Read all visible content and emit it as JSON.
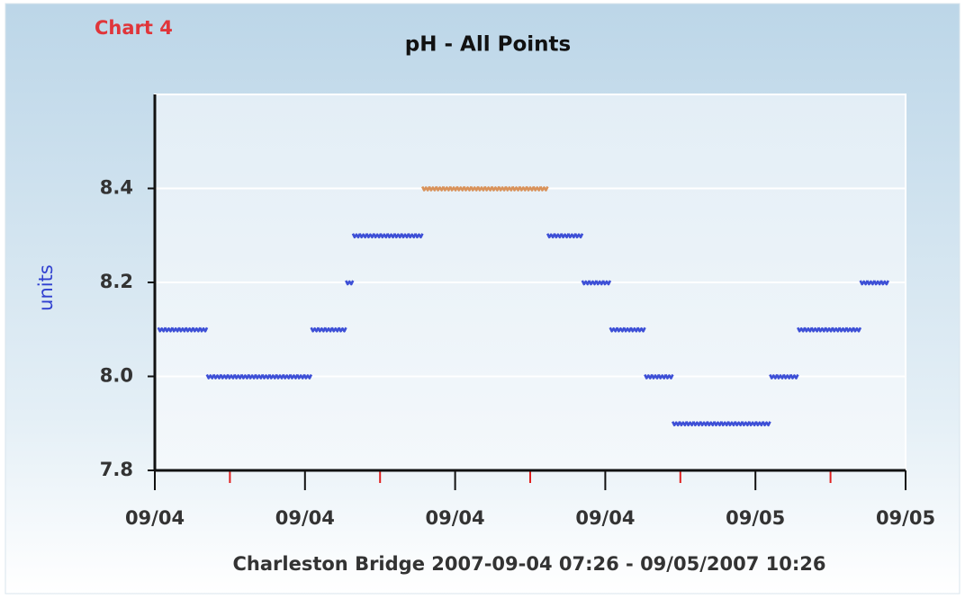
{
  "chart_data": {
    "type": "scatter",
    "label": "Chart 4",
    "title": "pH - All Points",
    "ylabel": "units",
    "footer": "Charleston Bridge 2007-09-04 07:26 - 09/05/2007 10:26",
    "xlim": [
      0,
      27
    ],
    "xticks": [
      {
        "value": 0,
        "label": "09/04"
      },
      {
        "value": 5.4,
        "label": "09/04"
      },
      {
        "value": 10.8,
        "label": "09/04"
      },
      {
        "value": 16.2,
        "label": "09/04"
      },
      {
        "value": 21.6,
        "label": "09/05"
      },
      {
        "value": 27,
        "label": "09/05"
      }
    ],
    "xminor": [
      2.7,
      8.1,
      13.5,
      18.9,
      24.3
    ],
    "ylim": [
      7.8,
      8.6
    ],
    "yticks": [
      7.8,
      {
        "value": 8.0,
        "label": "8.0"
      },
      8.2,
      8.4
    ],
    "grid": true,
    "series": [
      {
        "color": "#3d4fd6",
        "x": [
          0.25,
          0.5,
          0.75,
          1,
          1.25,
          1.5,
          1.75,
          2,
          2.25,
          2.5,
          2.75,
          3,
          3.25,
          3.5,
          3.75,
          4,
          4.25,
          4.5,
          4.75,
          5,
          5.25,
          5.5,
          5.75,
          6,
          6.25,
          6.5,
          6.75,
          7,
          7.25,
          7.5,
          7.75,
          8,
          8.25,
          8.5,
          8.75,
          9,
          9.25,
          9.5,
          14.25,
          14.5,
          14.75,
          15,
          15.25,
          15.5,
          15.75,
          16,
          16.25,
          16.5,
          16.75,
          17,
          17.25,
          17.5,
          17.75,
          18,
          18.25,
          18.5,
          18.75,
          19,
          19.25,
          19.5,
          19.75,
          20,
          20.25,
          20.5,
          20.75,
          21,
          21.25,
          21.5,
          21.75,
          22,
          22.25,
          22.5,
          22.75,
          23,
          23.25,
          23.5,
          23.75,
          24,
          24.25,
          24.5,
          24.75,
          25,
          25.25,
          25.5,
          25.75,
          26,
          26.25
        ],
        "values": [
          8.1,
          8.1,
          8.1,
          8.1,
          8.1,
          8.1,
          8.1,
          8.0,
          8.0,
          8.0,
          8.0,
          8.0,
          8.0,
          8.0,
          8.0,
          8.0,
          8.0,
          8.0,
          8.0,
          8.0,
          8.0,
          8.0,
          8.1,
          8.1,
          8.1,
          8.1,
          8.1,
          8.2,
          8.3,
          8.3,
          8.3,
          8.3,
          8.3,
          8.3,
          8.3,
          8.3,
          8.3,
          8.3,
          8.3,
          8.3,
          8.3,
          8.3,
          8.3,
          8.2,
          8.2,
          8.2,
          8.2,
          8.1,
          8.1,
          8.1,
          8.1,
          8.1,
          8.0,
          8.0,
          8.0,
          8.0,
          7.9,
          7.9,
          7.9,
          7.9,
          7.9,
          7.9,
          7.9,
          7.9,
          7.9,
          7.9,
          7.9,
          7.9,
          7.9,
          7.9,
          8.0,
          8.0,
          8.0,
          8.0,
          8.1,
          8.1,
          8.1,
          8.1,
          8.1,
          8.1,
          8.1,
          8.1,
          8.1,
          8.2,
          8.2,
          8.2,
          8.2
        ]
      },
      {
        "color": "#d9925a",
        "x": [
          9.75,
          10,
          10.25,
          10.5,
          10.75,
          11,
          11.25,
          11.5,
          11.75,
          12,
          12.25,
          12.5,
          12.75,
          13,
          13.25,
          13.5,
          13.75,
          14
        ],
        "values": [
          8.4,
          8.4,
          8.4,
          8.4,
          8.4,
          8.4,
          8.4,
          8.4,
          8.4,
          8.4,
          8.4,
          8.4,
          8.4,
          8.4,
          8.4,
          8.4,
          8.4,
          8.4
        ]
      }
    ]
  }
}
